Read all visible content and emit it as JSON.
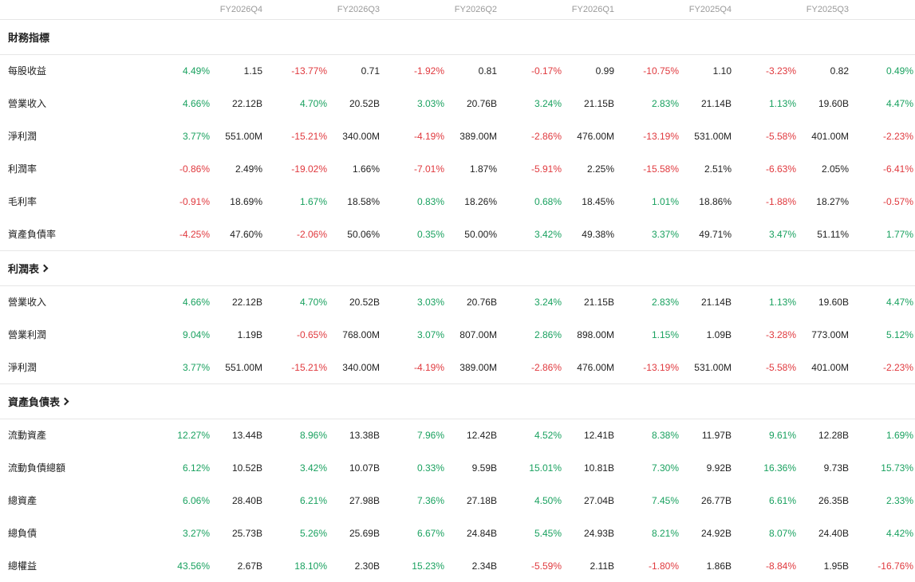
{
  "periods": [
    "FY2026Q4",
    "FY2026Q3",
    "FY2026Q2",
    "FY2026Q1",
    "FY2025Q4",
    "FY2025Q3"
  ],
  "sections": [
    {
      "title": "財務指標",
      "link": false,
      "rows": [
        {
          "label": "每股收益",
          "cells": [
            [
              "4.49%",
              "1.15"
            ],
            [
              "-13.77%",
              "0.71"
            ],
            [
              "-1.92%",
              "0.81"
            ],
            [
              "-0.17%",
              "0.99"
            ],
            [
              "-10.75%",
              "1.10"
            ],
            [
              "-3.23%",
              "0.82"
            ],
            [
              "0.49%",
              ""
            ]
          ]
        },
        {
          "label": "營業收入",
          "cells": [
            [
              "4.66%",
              "22.12B"
            ],
            [
              "4.70%",
              "20.52B"
            ],
            [
              "3.03%",
              "20.76B"
            ],
            [
              "3.24%",
              "21.15B"
            ],
            [
              "2.83%",
              "21.14B"
            ],
            [
              "1.13%",
              "19.60B"
            ],
            [
              "4.47%",
              ""
            ]
          ]
        },
        {
          "label": "淨利潤",
          "cells": [
            [
              "3.77%",
              "551.00M"
            ],
            [
              "-15.21%",
              "340.00M"
            ],
            [
              "-4.19%",
              "389.00M"
            ],
            [
              "-2.86%",
              "476.00M"
            ],
            [
              "-13.19%",
              "531.00M"
            ],
            [
              "-5.58%",
              "401.00M"
            ],
            [
              "-2.23%",
              ""
            ]
          ]
        },
        {
          "label": "利潤率",
          "cells": [
            [
              "-0.86%",
              "2.49%"
            ],
            [
              "-19.02%",
              "1.66%"
            ],
            [
              "-7.01%",
              "1.87%"
            ],
            [
              "-5.91%",
              "2.25%"
            ],
            [
              "-15.58%",
              "2.51%"
            ],
            [
              "-6.63%",
              "2.05%"
            ],
            [
              "-6.41%",
              ""
            ]
          ]
        },
        {
          "label": "毛利率",
          "cells": [
            [
              "-0.91%",
              "18.69%"
            ],
            [
              "1.67%",
              "18.58%"
            ],
            [
              "0.83%",
              "18.26%"
            ],
            [
              "0.68%",
              "18.45%"
            ],
            [
              "1.01%",
              "18.86%"
            ],
            [
              "-1.88%",
              "18.27%"
            ],
            [
              "-0.57%",
              ""
            ]
          ]
        },
        {
          "label": "資產負債率",
          "cells": [
            [
              "-4.25%",
              "47.60%"
            ],
            [
              "-2.06%",
              "50.06%"
            ],
            [
              "0.35%",
              "50.00%"
            ],
            [
              "3.42%",
              "49.38%"
            ],
            [
              "3.37%",
              "49.71%"
            ],
            [
              "3.47%",
              "51.11%"
            ],
            [
              "1.77%",
              ""
            ]
          ]
        }
      ]
    },
    {
      "title": "利潤表",
      "link": true,
      "rows": [
        {
          "label": "營業收入",
          "cells": [
            [
              "4.66%",
              "22.12B"
            ],
            [
              "4.70%",
              "20.52B"
            ],
            [
              "3.03%",
              "20.76B"
            ],
            [
              "3.24%",
              "21.15B"
            ],
            [
              "2.83%",
              "21.14B"
            ],
            [
              "1.13%",
              "19.60B"
            ],
            [
              "4.47%",
              ""
            ]
          ]
        },
        {
          "label": "營業利潤",
          "cells": [
            [
              "9.04%",
              "1.19B"
            ],
            [
              "-0.65%",
              "768.00M"
            ],
            [
              "3.07%",
              "807.00M"
            ],
            [
              "2.86%",
              "898.00M"
            ],
            [
              "1.15%",
              "1.09B"
            ],
            [
              "-3.28%",
              "773.00M"
            ],
            [
              "5.12%",
              ""
            ]
          ]
        },
        {
          "label": "淨利潤",
          "cells": [
            [
              "3.77%",
              "551.00M"
            ],
            [
              "-15.21%",
              "340.00M"
            ],
            [
              "-4.19%",
              "389.00M"
            ],
            [
              "-2.86%",
              "476.00M"
            ],
            [
              "-13.19%",
              "531.00M"
            ],
            [
              "-5.58%",
              "401.00M"
            ],
            [
              "-2.23%",
              ""
            ]
          ]
        }
      ]
    },
    {
      "title": "資產負債表",
      "link": true,
      "rows": [
        {
          "label": "流動資產",
          "cells": [
            [
              "12.27%",
              "13.44B"
            ],
            [
              "8.96%",
              "13.38B"
            ],
            [
              "7.96%",
              "12.42B"
            ],
            [
              "4.52%",
              "12.41B"
            ],
            [
              "8.38%",
              "11.97B"
            ],
            [
              "9.61%",
              "12.28B"
            ],
            [
              "1.69%",
              ""
            ]
          ]
        },
        {
          "label": "流動負債總額",
          "cells": [
            [
              "6.12%",
              "10.52B"
            ],
            [
              "3.42%",
              "10.07B"
            ],
            [
              "0.33%",
              "9.59B"
            ],
            [
              "15.01%",
              "10.81B"
            ],
            [
              "7.30%",
              "9.92B"
            ],
            [
              "16.36%",
              "9.73B"
            ],
            [
              "15.73%",
              ""
            ]
          ]
        },
        {
          "label": "總資產",
          "cells": [
            [
              "6.06%",
              "28.40B"
            ],
            [
              "6.21%",
              "27.98B"
            ],
            [
              "7.36%",
              "27.18B"
            ],
            [
              "4.50%",
              "27.04B"
            ],
            [
              "7.45%",
              "26.77B"
            ],
            [
              "6.61%",
              "26.35B"
            ],
            [
              "2.33%",
              ""
            ]
          ]
        },
        {
          "label": "總負債",
          "cells": [
            [
              "3.27%",
              "25.73B"
            ],
            [
              "5.26%",
              "25.69B"
            ],
            [
              "6.67%",
              "24.84B"
            ],
            [
              "5.45%",
              "24.93B"
            ],
            [
              "8.21%",
              "24.92B"
            ],
            [
              "8.07%",
              "24.40B"
            ],
            [
              "4.42%",
              ""
            ]
          ]
        },
        {
          "label": "總權益",
          "cells": [
            [
              "43.56%",
              "2.67B"
            ],
            [
              "18.10%",
              "2.30B"
            ],
            [
              "15.23%",
              "2.34B"
            ],
            [
              "-5.59%",
              "2.11B"
            ],
            [
              "-1.80%",
              "1.86B"
            ],
            [
              "-8.84%",
              "1.95B"
            ],
            [
              "-16.76%",
              ""
            ]
          ]
        }
      ]
    }
  ],
  "colors": {
    "positive": "#19a15f",
    "negative": "#e0393e",
    "header": "#9a9a9a",
    "divider": "#e6e6e6"
  }
}
